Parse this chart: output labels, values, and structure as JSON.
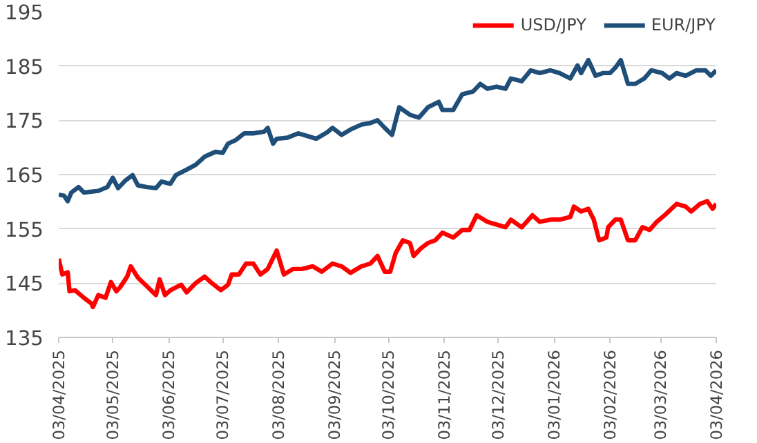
{
  "chart_data": {
    "type": "line",
    "legend": "top right",
    "grid": "y",
    "line_style": "solid",
    "ylim": [
      135,
      195
    ],
    "yticks": [
      135,
      145,
      155,
      165,
      175,
      185,
      195
    ],
    "xlim": [
      "2025-04-03",
      "2026-04-03"
    ],
    "xticks": [
      {
        "value": "2025-04-03",
        "label": "03/04/2025"
      },
      {
        "value": "2025-05-03",
        "label": "03/05/2025"
      },
      {
        "value": "2025-06-03",
        "label": "03/06/2025"
      },
      {
        "value": "2025-07-03",
        "label": "03/07/2025"
      },
      {
        "value": "2025-08-03",
        "label": "03/08/2025"
      },
      {
        "value": "2025-09-03",
        "label": "03/09/2025"
      },
      {
        "value": "2025-10-03",
        "label": "03/10/2025"
      },
      {
        "value": "2025-11-03",
        "label": "03/11/2025"
      },
      {
        "value": "2025-12-03",
        "label": "03/12/2025"
      },
      {
        "value": "2026-01-03",
        "label": "03/01/2026"
      },
      {
        "value": "2026-02-03",
        "label": "03/02/2026"
      },
      {
        "value": "2026-03-03",
        "label": "03/03/2026"
      },
      {
        "value": "2026-04-03",
        "label": "03/04/2026"
      }
    ],
    "series": [
      {
        "name": "USD/JPY",
        "color": "#ff0000",
        "x": [
          "2025-04-03",
          "2025-04-05",
          "2025-04-08",
          "2025-04-09",
          "2025-04-12",
          "2025-04-17",
          "2025-04-21",
          "2025-04-22",
          "2025-04-25",
          "2025-04-29",
          "2025-05-02",
          "2025-05-05",
          "2025-05-07",
          "2025-05-11",
          "2025-05-13",
          "2025-05-17",
          "2025-05-22",
          "2025-05-27",
          "2025-05-29",
          "2025-06-01",
          "2025-06-04",
          "2025-06-10",
          "2025-06-13",
          "2025-06-18",
          "2025-06-23",
          "2025-06-27",
          "2025-07-02",
          "2025-07-06",
          "2025-07-08",
          "2025-07-12",
          "2025-07-16",
          "2025-07-20",
          "2025-07-24",
          "2025-07-28",
          "2025-08-02",
          "2025-08-06",
          "2025-08-11",
          "2025-08-16",
          "2025-08-22",
          "2025-08-27",
          "2025-09-02",
          "2025-09-07",
          "2025-09-12",
          "2025-09-18",
          "2025-09-23",
          "2025-09-27",
          "2025-10-01",
          "2025-10-04",
          "2025-10-07",
          "2025-10-11",
          "2025-10-15",
          "2025-10-17",
          "2025-10-21",
          "2025-10-25",
          "2025-10-29",
          "2025-11-02",
          "2025-11-08",
          "2025-11-13",
          "2025-11-17",
          "2025-11-21",
          "2025-11-27",
          "2025-12-02",
          "2025-12-07",
          "2025-12-10",
          "2025-12-16",
          "2025-12-22",
          "2025-12-26",
          "2026-01-01",
          "2026-01-06",
          "2026-01-12",
          "2026-01-14",
          "2026-01-18",
          "2026-01-22",
          "2026-01-25",
          "2026-01-28",
          "2026-02-01",
          "2026-02-02",
          "2026-02-06",
          "2026-02-09",
          "2026-02-13",
          "2026-02-17",
          "2026-02-21",
          "2026-02-25",
          "2026-03-01",
          "2026-03-06",
          "2026-03-12",
          "2026-03-17",
          "2026-03-20",
          "2026-03-25",
          "2026-03-29",
          "2026-04-01",
          "2026-04-03"
        ],
        "values": [
          149.5,
          146.6,
          147,
          143.5,
          143.7,
          142.3,
          141.3,
          140.6,
          142.8,
          142.3,
          145.2,
          143.5,
          144.2,
          146.2,
          148.1,
          146,
          144.4,
          142.8,
          145.7,
          142.8,
          143.7,
          144.7,
          143.3,
          145,
          146.2,
          145,
          143.7,
          144.7,
          146.6,
          146.6,
          148.6,
          148.6,
          146.6,
          147.6,
          151,
          146.6,
          147.6,
          147.6,
          148.1,
          147.1,
          148.6,
          148.1,
          146.9,
          148.1,
          148.6,
          150,
          147.1,
          147.1,
          150.5,
          152.9,
          152.4,
          150,
          151.4,
          152.4,
          152.9,
          154.3,
          153.4,
          154.8,
          154.8,
          157.5,
          156.3,
          155.8,
          155.3,
          156.7,
          155.3,
          157.5,
          156.3,
          156.7,
          156.7,
          157.2,
          159.1,
          158.2,
          158.7,
          156.7,
          152.9,
          153.4,
          155.3,
          156.7,
          156.7,
          152.9,
          152.9,
          155.3,
          154.8,
          156.3,
          157.7,
          159.6,
          159.1,
          158.2,
          159.6,
          160.1,
          158.7,
          159.6
        ]
      },
      {
        "name": "EUR/JPY",
        "color": "#1f4e79",
        "x": [
          "2025-04-03",
          "2025-04-06",
          "2025-04-08",
          "2025-04-10",
          "2025-04-14",
          "2025-04-17",
          "2025-04-25",
          "2025-04-30",
          "2025-05-03",
          "2025-05-06",
          "2025-05-10",
          "2025-05-14",
          "2025-05-17",
          "2025-05-22",
          "2025-05-27",
          "2025-05-30",
          "2025-06-04",
          "2025-06-07",
          "2025-06-13",
          "2025-06-18",
          "2025-06-23",
          "2025-06-29",
          "2025-07-03",
          "2025-07-06",
          "2025-07-10",
          "2025-07-15",
          "2025-07-20",
          "2025-07-26",
          "2025-07-28",
          "2025-07-31",
          "2025-08-02",
          "2025-08-08",
          "2025-08-14",
          "2025-08-19",
          "2025-08-24",
          "2025-08-30",
          "2025-09-02",
          "2025-09-07",
          "2025-09-12",
          "2025-09-18",
          "2025-09-23",
          "2025-09-27",
          "2025-10-01",
          "2025-10-05",
          "2025-10-09",
          "2025-10-15",
          "2025-10-20",
          "2025-10-25",
          "2025-10-31",
          "2025-11-02",
          "2025-11-08",
          "2025-11-13",
          "2025-11-19",
          "2025-11-23",
          "2025-11-27",
          "2025-12-02",
          "2025-12-07",
          "2025-12-10",
          "2025-12-16",
          "2025-12-21",
          "2025-12-26",
          "2026-01-01",
          "2026-01-06",
          "2026-01-12",
          "2026-01-16",
          "2026-01-18",
          "2026-01-22",
          "2026-01-26",
          "2026-01-30",
          "2026-02-03",
          "2026-02-06",
          "2026-02-09",
          "2026-02-13",
          "2026-02-17",
          "2026-02-22",
          "2026-02-26",
          "2026-03-04",
          "2026-03-08",
          "2026-03-12",
          "2026-03-17",
          "2026-03-23",
          "2026-03-28",
          "2026-03-31",
          "2026-04-03"
        ],
        "values": [
          161.3,
          161.1,
          160.1,
          161.7,
          162.7,
          161.7,
          162,
          162.7,
          164.4,
          162.5,
          163.9,
          164.9,
          163,
          162.7,
          162.5,
          163.7,
          163.3,
          164.9,
          165.9,
          166.8,
          168.3,
          169.2,
          169,
          170.7,
          171.3,
          172.6,
          172.6,
          172.9,
          173.6,
          170.7,
          171.6,
          171.8,
          172.6,
          172.1,
          171.6,
          172.8,
          173.6,
          172.3,
          173.3,
          174.2,
          174.5,
          175,
          173.6,
          172.3,
          177.4,
          176,
          175.5,
          177.4,
          178.4,
          176.9,
          176.9,
          179.8,
          180.3,
          181.7,
          180.8,
          181.2,
          180.8,
          182.7,
          182.2,
          184.2,
          183.7,
          184.2,
          183.7,
          182.7,
          185.1,
          183.7,
          186.1,
          183.2,
          183.7,
          183.7,
          184.7,
          186.1,
          181.7,
          181.7,
          182.7,
          184.2,
          183.7,
          182.7,
          183.7,
          183.2,
          184.2,
          184.2,
          183.2,
          184.2
        ]
      }
    ]
  }
}
